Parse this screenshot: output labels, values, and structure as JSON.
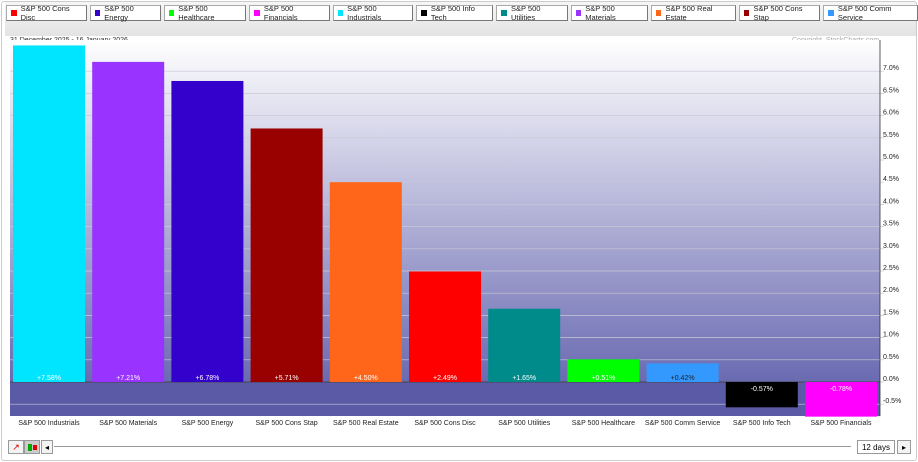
{
  "legend": [
    {
      "label": "S&P 500 Cons Disc",
      "color": "#ff0000"
    },
    {
      "label": "S&P 500 Energy",
      "color": "#3300cc"
    },
    {
      "label": "S&P 500 Healthcare",
      "color": "#00ff00"
    },
    {
      "label": "S&P 500 Financials",
      "color": "#ff00ff"
    },
    {
      "label": "S&P 500 Industrials",
      "color": "#00e5ff"
    },
    {
      "label": "S&P 500 Info Tech",
      "color": "#000000"
    },
    {
      "label": "S&P 500 Utilities",
      "color": "#008b8b"
    },
    {
      "label": "S&P 500 Materials",
      "color": "#9933ff"
    },
    {
      "label": "S&P 500 Real Estate",
      "color": "#ff6619"
    },
    {
      "label": "S&P 500 Cons Stap",
      "color": "#990000"
    },
    {
      "label": "S&P 500 Comm Service",
      "color": "#3399ff"
    }
  ],
  "date_range": "31 December 2025 - 16 January 2026",
  "copyright": "Copyright, StockCharts.com",
  "period_label": "12 days",
  "chart_data": {
    "type": "bar",
    "categories": [
      "S&P 500 Industrials",
      "S&P 500 Materials",
      "S&P 500 Energy",
      "S&P 500 Cons Stap",
      "S&P 500 Real Estate",
      "S&P 500 Cons Disc",
      "S&P 500 Utilities",
      "S&P 500 Healthcare",
      "S&P 500 Comm Service",
      "S&P 500 Info Tech",
      "S&P 500 Financials"
    ],
    "values": [
      7.58,
      7.21,
      6.78,
      5.71,
      4.5,
      2.49,
      1.65,
      0.51,
      0.42,
      -0.57,
      -0.78
    ],
    "data_labels": [
      "+7.58%",
      "+7.21%",
      "+6.78%",
      "+5.71%",
      "+4.50%",
      "+2.49%",
      "+1.65%",
      "+0.51%",
      "+0.42%",
      "-0.57%",
      "-0.78%"
    ],
    "colors": [
      "#00e5ff",
      "#9933ff",
      "#3300cc",
      "#990000",
      "#ff6619",
      "#ff0000",
      "#008b8b",
      "#00ff00",
      "#3399ff",
      "#000000",
      "#ff00ff"
    ],
    "yticks": [
      "7.0%",
      "6.5%",
      "6.0%",
      "5.5%",
      "5.0%",
      "4.5%",
      "4.0%",
      "3.5%",
      "3.0%",
      "2.5%",
      "2.0%",
      "1.5%",
      "1.0%",
      "0.5%",
      "0.0%",
      "-0.5%"
    ],
    "ylim": [
      -0.78,
      7.7
    ],
    "axis": "right",
    "grid": true
  }
}
